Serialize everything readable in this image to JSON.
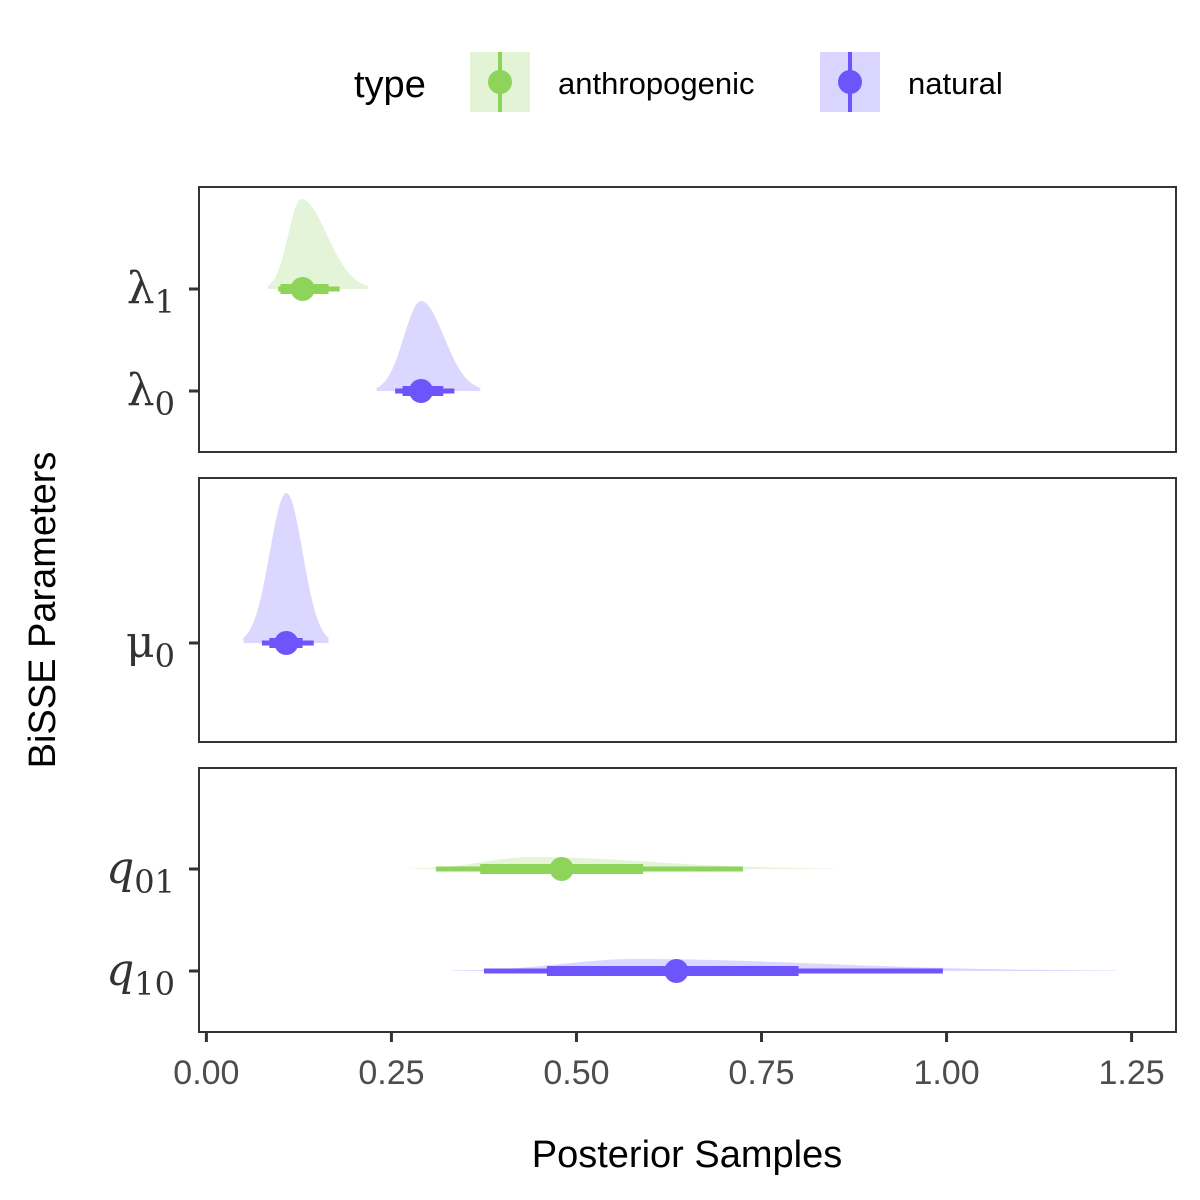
{
  "chart_data": {
    "type": "halfeye",
    "xlabel": "Posterior Samples",
    "ylabel": "BiSSE Parameters",
    "xlim": [
      -0.01,
      1.31
    ],
    "x_ticks": [
      0.0,
      0.25,
      0.5,
      0.75,
      1.0,
      1.25
    ],
    "x_tick_labels": [
      "0.00",
      "0.25",
      "0.50",
      "0.75",
      "1.00",
      "1.25"
    ],
    "grid": false,
    "legend": {
      "title": "type",
      "position": "top",
      "entries": [
        {
          "label": "anthropogenic",
          "color": "#8ed35a"
        },
        {
          "label": "natural",
          "color": "#6d55fb"
        }
      ]
    },
    "panels": [
      {
        "rows": [
          {
            "base": "λ",
            "sub": "1",
            "type": "anthropogenic",
            "median": 0.13,
            "interval_66": [
              0.1,
              0.165
            ],
            "interval_95": [
              0.097,
              0.18
            ],
            "density_range": [
              0.083,
              0.218
            ],
            "peak": 0.128
          },
          {
            "base": "λ",
            "sub": "0",
            "type": "natural",
            "median": 0.29,
            "interval_66": [
              0.265,
              0.32
            ],
            "interval_95": [
              0.255,
              0.335
            ],
            "density_range": [
              0.23,
              0.37
            ],
            "peak": 0.29
          }
        ]
      },
      {
        "rows": [
          {
            "base": "μ",
            "sub": "0",
            "type": "natural",
            "median": 0.108,
            "interval_66": [
              0.085,
              0.13
            ],
            "interval_95": [
              0.075,
              0.145
            ],
            "density_range": [
              0.05,
              0.165
            ],
            "peak": 0.108
          }
        ]
      },
      {
        "rows": [
          {
            "base": "q",
            "sub": "01",
            "type": "anthropogenic",
            "median": 0.48,
            "interval_66": [
              0.37,
              0.59
            ],
            "interval_95": [
              0.31,
              0.725
            ],
            "density_range": [
              0.275,
              0.85
            ],
            "peak": 0.44
          },
          {
            "base": "q",
            "sub": "10",
            "type": "natural",
            "median": 0.635,
            "interval_66": [
              0.46,
              0.8
            ],
            "interval_95": [
              0.375,
              0.995
            ],
            "density_range": [
              0.33,
              1.23
            ],
            "peak": 0.58
          }
        ]
      }
    ]
  },
  "colors": {
    "anthropogenic": "#8ed35a",
    "anthropogenic_fill": "#e2f3d6",
    "natural": "#6d55fb",
    "natural_fill": "#dad5fe",
    "panel_border": "#333333",
    "tick": "#333333"
  }
}
